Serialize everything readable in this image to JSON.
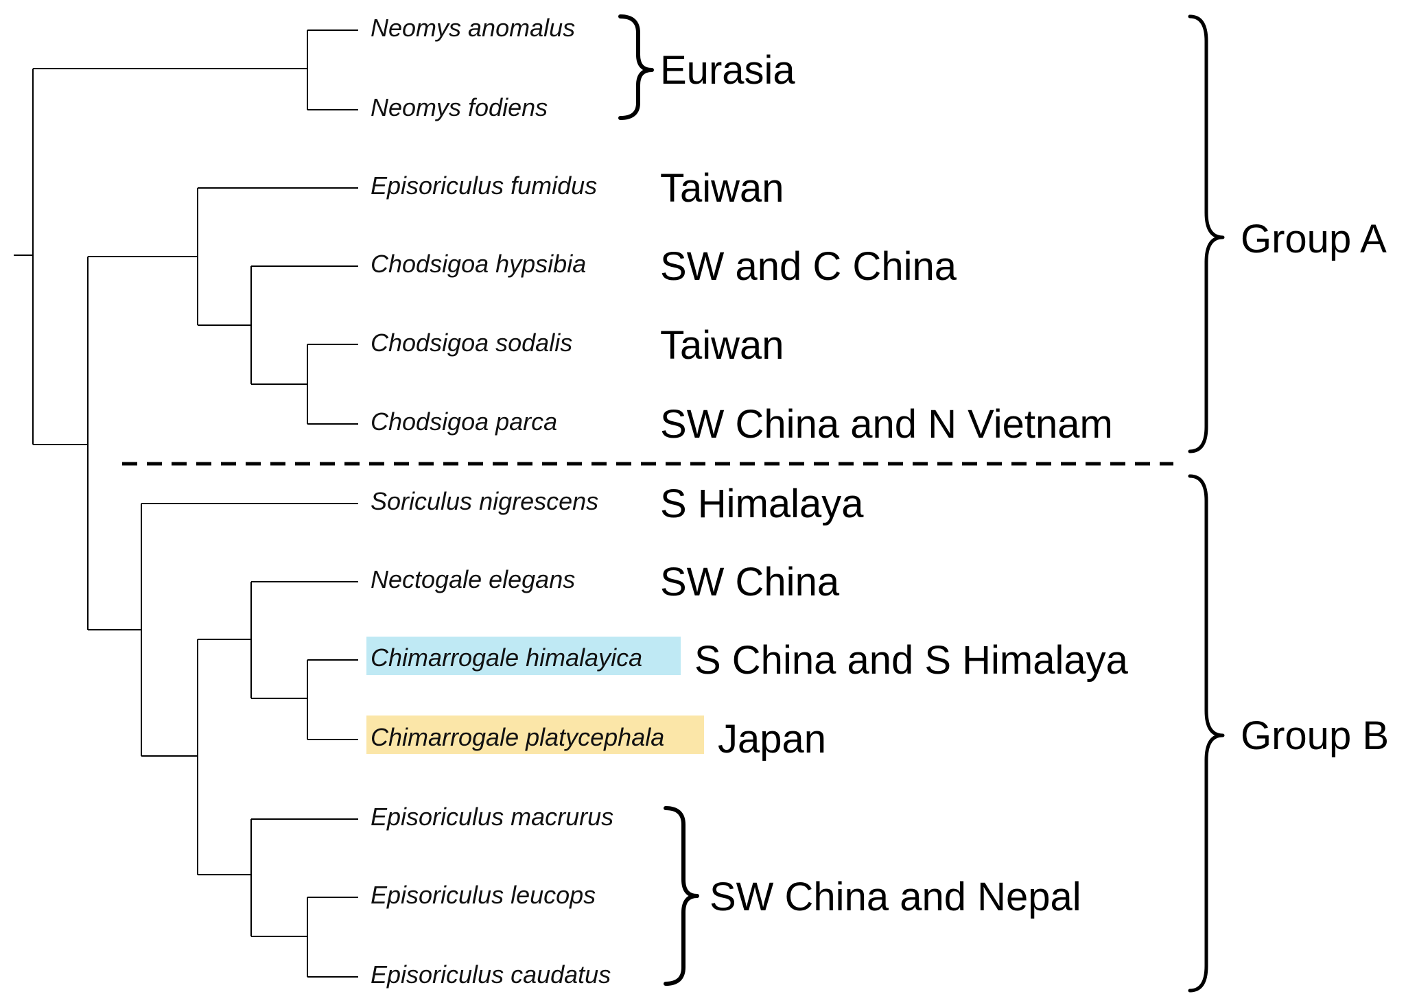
{
  "taxa": [
    {
      "name": "Neomys anomalus"
    },
    {
      "name": "Neomys fodiens"
    },
    {
      "name": "Episoriculus fumidus"
    },
    {
      "name": "Chodsigoa hypsibia"
    },
    {
      "name": "Chodsigoa sodalis"
    },
    {
      "name": "Chodsigoa parca"
    },
    {
      "name": "Soriculus nigrescens"
    },
    {
      "name": "Nectogale elegans"
    },
    {
      "name": "Chimarrogale himalayica",
      "highlight": "#bfe9f4"
    },
    {
      "name": "Chimarrogale platycephala",
      "highlight": "#fbe6a8"
    },
    {
      "name": "Episoriculus macrurus"
    },
    {
      "name": "Episoriculus leucops"
    },
    {
      "name": "Episoriculus caudatus"
    }
  ],
  "regions": {
    "eurasia": "Eurasia",
    "taiwan_1": "Taiwan",
    "sw_c_china": "SW and C China",
    "taiwan_2": "Taiwan",
    "sw_china_n_vietnam": "SW China and N Vietnam",
    "s_himalaya": "S Himalaya",
    "sw_china": "SW China",
    "s_china_s_himalaya": "S China and S Himalaya",
    "japan": "Japan",
    "sw_china_nepal": "SW China and Nepal"
  },
  "groups": {
    "a": "Group A",
    "b": "Group B"
  }
}
